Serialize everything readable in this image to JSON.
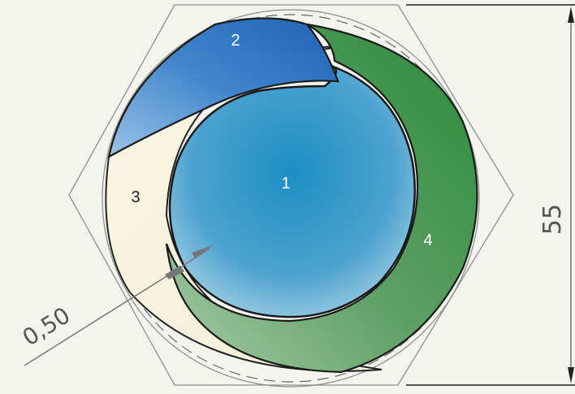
{
  "diagram": {
    "regions": [
      {
        "label": "1",
        "color": "#2a8fc4"
      },
      {
        "label": "2",
        "color": "#2a6fbd"
      },
      {
        "label": "3",
        "color": "#f7f3df"
      },
      {
        "label": "4",
        "color": "#2f8a40"
      }
    ],
    "dimensions": {
      "height": "55",
      "gap": "0,50"
    },
    "colors": {
      "background": "#f4f4ee",
      "outline": "#8a8a8a",
      "stroke": "#222222"
    }
  }
}
